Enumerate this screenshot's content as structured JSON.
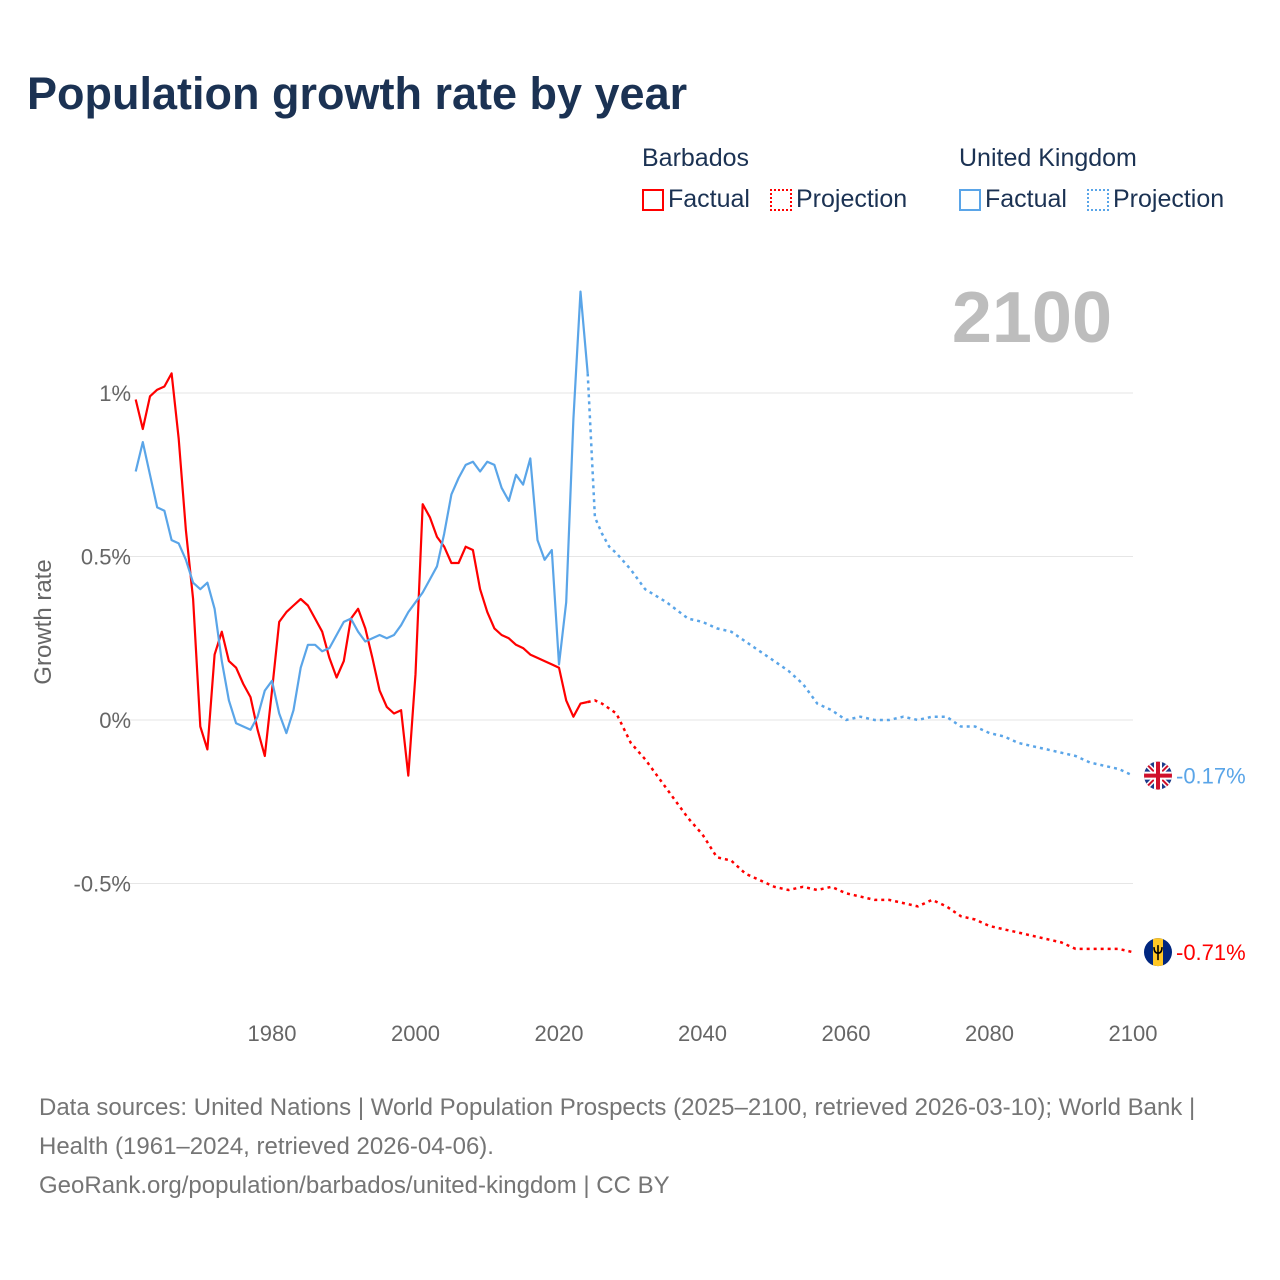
{
  "title": "Population growth rate by year",
  "legend": {
    "groups": [
      {
        "name": "Barbados",
        "factual": "Factual",
        "projection": "Projection",
        "color": "#ff0000"
      },
      {
        "name": "United Kingdom",
        "factual": "Factual",
        "projection": "Projection",
        "color": "#5aa5e8"
      }
    ]
  },
  "year_label": "2100",
  "end_labels": {
    "uk": "-0.17%",
    "barbados": "-0.71%"
  },
  "footer": {
    "sources": "Data sources: United Nations | World Population Prospects (2025–2100, retrieved 2026-03-10); World Bank | Health (1961–2024, retrieved 2026-04-06).",
    "credit": "GeoRank.org/population/barbados/united-kingdom | CC BY"
  },
  "chart_data": {
    "type": "line",
    "title": "Population growth rate by year",
    "xlabel": "",
    "ylabel": "Growth rate",
    "xlim": [
      1961,
      2100
    ],
    "ylim": [
      -0.8,
      1.35
    ],
    "xticks": [
      1980,
      2000,
      2020,
      2040,
      2060,
      2080,
      2100
    ],
    "yticks": [
      {
        "v": 1,
        "label": "1%"
      },
      {
        "v": 0.5,
        "label": "0.5%"
      },
      {
        "v": 0,
        "label": "0%"
      },
      {
        "v": -0.5,
        "label": "-0.5%"
      }
    ],
    "grid": true,
    "series": [
      {
        "name": "Barbados Factual",
        "country": "barbados",
        "style": "solid",
        "color": "#ff0000",
        "x": [
          1961,
          1962,
          1963,
          1964,
          1965,
          1966,
          1967,
          1968,
          1969,
          1970,
          1971,
          1972,
          1973,
          1974,
          1975,
          1976,
          1977,
          1978,
          1979,
          1980,
          1981,
          1982,
          1983,
          1984,
          1985,
          1986,
          1987,
          1988,
          1989,
          1990,
          1991,
          1992,
          1993,
          1994,
          1995,
          1996,
          1997,
          1998,
          1999,
          2000,
          2001,
          2002,
          2003,
          2004,
          2005,
          2006,
          2007,
          2008,
          2009,
          2010,
          2011,
          2012,
          2013,
          2014,
          2015,
          2016,
          2017,
          2018,
          2019,
          2020,
          2021,
          2022,
          2023,
          2024
        ],
        "y": [
          0.98,
          0.89,
          0.99,
          1.01,
          1.02,
          1.06,
          0.86,
          0.58,
          0.37,
          -0.02,
          -0.09,
          0.2,
          0.27,
          0.18,
          0.16,
          0.11,
          0.07,
          -0.03,
          -0.11,
          0.09,
          0.3,
          0.33,
          0.35,
          0.37,
          0.35,
          0.31,
          0.27,
          0.19,
          0.13,
          0.18,
          0.31,
          0.34,
          0.28,
          0.19,
          0.09,
          0.04,
          0.02,
          0.03,
          -0.17,
          0.14,
          0.66,
          0.62,
          0.56,
          0.53,
          0.48,
          0.48,
          0.53,
          0.52,
          0.4,
          0.33,
          0.28,
          0.26,
          0.25,
          0.23,
          0.22,
          0.2,
          0.19,
          0.18,
          0.17,
          0.16,
          0.06,
          0.01,
          0.05,
          0.055
        ]
      },
      {
        "name": "Barbados Projection",
        "country": "barbados",
        "style": "dotted",
        "color": "#ff0000",
        "x": [
          2024,
          2025,
          2026,
          2028,
          2030,
          2032,
          2034,
          2036,
          2038,
          2040,
          2042,
          2044,
          2046,
          2048,
          2050,
          2052,
          2054,
          2056,
          2058,
          2060,
          2062,
          2064,
          2066,
          2068,
          2070,
          2072,
          2074,
          2076,
          2078,
          2080,
          2082,
          2084,
          2086,
          2088,
          2090,
          2092,
          2094,
          2096,
          2098,
          2100
        ],
        "y": [
          0.055,
          0.06,
          0.05,
          0.02,
          -0.07,
          -0.12,
          -0.18,
          -0.24,
          -0.3,
          -0.35,
          -0.42,
          -0.43,
          -0.47,
          -0.49,
          -0.51,
          -0.52,
          -0.51,
          -0.52,
          -0.51,
          -0.53,
          -0.54,
          -0.55,
          -0.55,
          -0.56,
          -0.57,
          -0.55,
          -0.57,
          -0.6,
          -0.61,
          -0.63,
          -0.64,
          -0.65,
          -0.66,
          -0.67,
          -0.68,
          -0.7,
          -0.7,
          -0.7,
          -0.7,
          -0.71
        ]
      },
      {
        "name": "United Kingdom Factual",
        "country": "uk",
        "style": "solid",
        "color": "#5aa5e8",
        "x": [
          1961,
          1962,
          1963,
          1964,
          1965,
          1966,
          1967,
          1968,
          1969,
          1970,
          1971,
          1972,
          1973,
          1974,
          1975,
          1976,
          1977,
          1978,
          1979,
          1980,
          1981,
          1982,
          1983,
          1984,
          1985,
          1986,
          1987,
          1988,
          1989,
          1990,
          1991,
          1992,
          1993,
          1994,
          1995,
          1996,
          1997,
          1998,
          1999,
          2000,
          2001,
          2002,
          2003,
          2004,
          2005,
          2006,
          2007,
          2008,
          2009,
          2010,
          2011,
          2012,
          2013,
          2014,
          2015,
          2016,
          2017,
          2018,
          2019,
          2020,
          2021,
          2022,
          2023,
          2024
        ],
        "y": [
          0.76,
          0.85,
          0.75,
          0.65,
          0.64,
          0.55,
          0.54,
          0.49,
          0.42,
          0.4,
          0.42,
          0.34,
          0.18,
          0.06,
          -0.01,
          -0.02,
          -0.03,
          0.01,
          0.09,
          0.12,
          0.02,
          -0.04,
          0.03,
          0.16,
          0.23,
          0.23,
          0.21,
          0.22,
          0.26,
          0.3,
          0.31,
          0.27,
          0.24,
          0.25,
          0.26,
          0.25,
          0.26,
          0.29,
          0.33,
          0.36,
          0.39,
          0.43,
          0.47,
          0.57,
          0.69,
          0.74,
          0.78,
          0.79,
          0.76,
          0.79,
          0.78,
          0.71,
          0.67,
          0.75,
          0.72,
          0.8,
          0.55,
          0.49,
          0.52,
          0.17,
          0.36,
          0.92,
          1.31,
          1.06
        ]
      },
      {
        "name": "United Kingdom Projection",
        "country": "uk",
        "style": "dotted",
        "color": "#5aa5e8",
        "x": [
          2024,
          2025,
          2026,
          2027,
          2028,
          2030,
          2032,
          2035,
          2038,
          2040,
          2042,
          2044,
          2046,
          2048,
          2050,
          2052,
          2054,
          2056,
          2058,
          2060,
          2062,
          2064,
          2066,
          2068,
          2070,
          2072,
          2074,
          2076,
          2078,
          2080,
          2082,
          2084,
          2086,
          2088,
          2090,
          2092,
          2094,
          2096,
          2098,
          2100
        ],
        "y": [
          1.06,
          0.62,
          0.57,
          0.53,
          0.51,
          0.46,
          0.4,
          0.36,
          0.31,
          0.3,
          0.28,
          0.27,
          0.24,
          0.21,
          0.18,
          0.15,
          0.11,
          0.05,
          0.03,
          0.0,
          0.01,
          0.0,
          0.0,
          0.01,
          0.0,
          0.01,
          0.01,
          -0.02,
          -0.02,
          -0.04,
          -0.05,
          -0.07,
          -0.08,
          -0.09,
          -0.1,
          -0.11,
          -0.13,
          -0.14,
          -0.15,
          -0.17
        ]
      }
    ]
  }
}
